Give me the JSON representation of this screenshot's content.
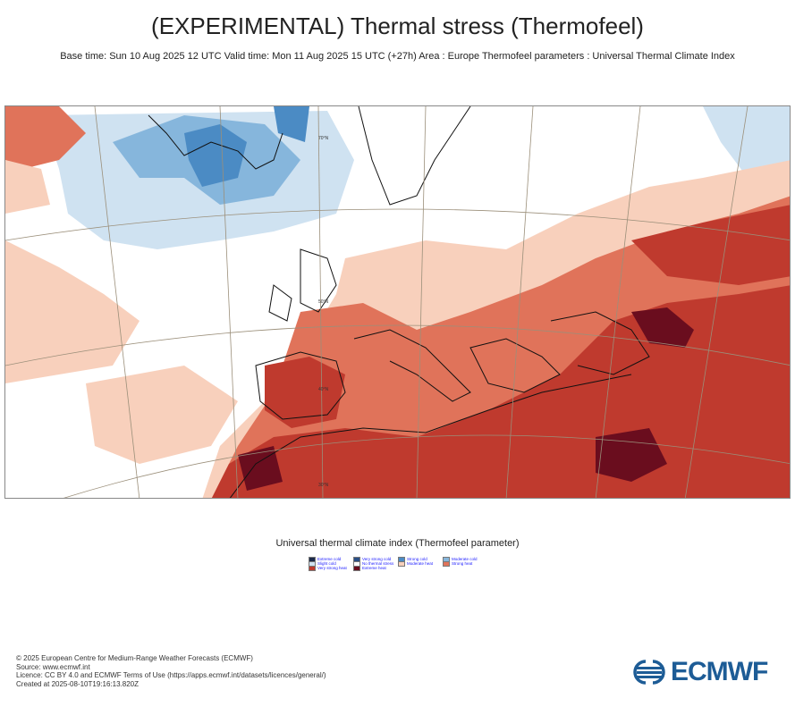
{
  "header": {
    "title": "(EXPERIMENTAL) Thermal stress (Thermofeel)",
    "subtitle": "Base time: Sun 10 Aug 2025 12 UTC Valid time: Mon 11 Aug 2025 15 UTC (+27h) Area : Europe Thermofeel parameters : Universal Thermal Climate Index"
  },
  "map": {
    "grid_labels": [
      "70°N",
      "50°N",
      "40°N",
      "30°N"
    ]
  },
  "legend": {
    "title": "Universal thermal climate index (Thermofeel parameter)",
    "items": [
      {
        "label": "Extreme cold",
        "color": "#1b2a4a"
      },
      {
        "label": "Very strong cold",
        "color": "#2a4f86"
      },
      {
        "label": "Strong cold",
        "color": "#4b8bc4"
      },
      {
        "label": "Moderate cold",
        "color": "#86b6dc"
      },
      {
        "label": "Slight cold",
        "color": "#cfe2f1"
      },
      {
        "label": "No thermal stress",
        "color": "#ffffff"
      },
      {
        "label": "Moderate heat",
        "color": "#f8d0bc"
      },
      {
        "label": "Strong heat",
        "color": "#e0735a"
      },
      {
        "label": "Very strong heat",
        "color": "#bf3a2e"
      },
      {
        "label": "Extreme heat",
        "color": "#6a0d1e"
      }
    ]
  },
  "footer": {
    "line1": "© 2025 European Centre for Medium-Range Weather Forecasts (ECMWF)",
    "line2": "Source: www.ecmwf.int",
    "line3": "Licence: CC BY 4.0 and ECMWF Terms of Use (https://apps.ecmwf.int/datasets/licences/general/)",
    "line4": "Created at 2025-08-10T19:16:13.820Z"
  },
  "logo": {
    "text": "ECMWF",
    "color": "#1d5c96"
  }
}
